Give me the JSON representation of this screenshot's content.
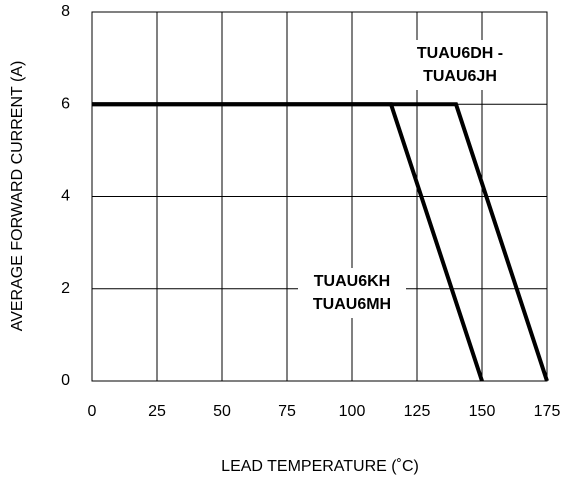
{
  "chart_data": {
    "type": "line",
    "xlabel": "LEAD TEMPERATURE (˚C)",
    "ylabel": "AVERAGE FORWARD CURRENT (A)",
    "series": [
      {
        "color": "#000000",
        "x": [
          0,
          140,
          175
        ],
        "values": [
          6,
          6,
          0
        ]
      },
      {
        "color": "#000000",
        "x": [
          0,
          115,
          150
        ],
        "values": [
          6,
          6,
          0
        ]
      }
    ],
    "annotations": [
      "TUAU6DH -",
      "TUAU6JH",
      "TUAU6KH",
      "TUAU6MH"
    ],
    "xlim": [
      0,
      175
    ],
    "xticks": [
      0,
      25,
      50,
      75,
      100,
      125,
      150,
      175
    ],
    "ylim": [
      0,
      8
    ],
    "yticks": [
      0,
      2,
      4,
      6,
      8
    ],
    "grid": true
  }
}
